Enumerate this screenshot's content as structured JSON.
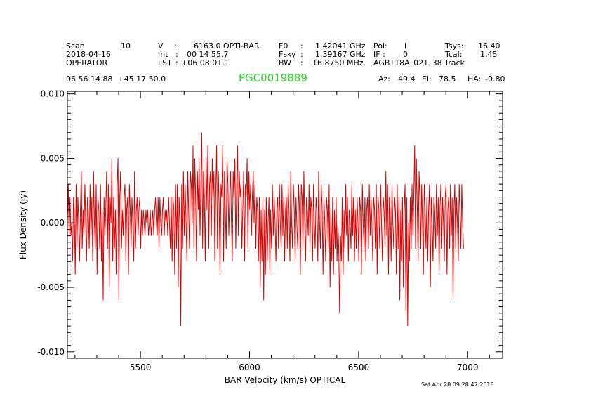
{
  "header": {
    "scan_label": "Scan",
    "scan_value": "10",
    "date": "2018-04-16",
    "observer": "OPERATOR",
    "v_label": "V",
    "v_value": "6163.0 OPTI-BAR",
    "int_label": "Int",
    "int_value": "00 14 55.7",
    "lst_label": "LST",
    "lst_value": "+06 08 01.1",
    "f0_label": "F0",
    "f0_value": "1.42041 GHz",
    "fsky_label": "Fsky",
    "fsky_value": "1.39167 GHz",
    "bw_label": "BW",
    "bw_value": "16.8750 MHz",
    "pol_label": "Pol:",
    "pol_value": "I",
    "if_label": "IF :",
    "if_value": "0",
    "project": "AGBT18A_021_38 Track",
    "tsys_label": "Tsys:",
    "tsys_value": "16.40",
    "tcal_label": "Tcal:",
    "tcal_value": "1.45",
    "coords": "06 56 14.88  +45 17 50.0",
    "az_label": "Az:",
    "az_value": "49.4",
    "el_label": "El:",
    "el_value": "78.5",
    "ha_label": "HA:",
    "ha_value": "-0.80"
  },
  "source_name": "PGC0019889",
  "timestamp": "Sat Apr 28 09:28:47 2018",
  "colors": {
    "line": "#dd0000",
    "title": "#22dd22",
    "axes": "#000000"
  },
  "chart_data": {
    "type": "line",
    "xlabel": "BAR Velocity (km/s) OPTICAL",
    "ylabel": "Flux Density (Jy)",
    "xlim": [
      5165,
      7160
    ],
    "ylim": [
      -0.0105,
      0.0102
    ],
    "xticks": [
      5500,
      6000,
      6500,
      7000
    ],
    "xtick_labels": [
      "5500",
      "6000",
      "6500",
      "7000"
    ],
    "yticks": [
      -0.01,
      -0.005,
      0.0,
      0.005,
      0.01
    ],
    "ytick_labels": [
      "-0.010",
      "-0.005",
      "0.000",
      "0.005",
      "0.010"
    ],
    "grid": false,
    "series": [
      {
        "x_start": 5165,
        "x_step": 4,
        "values": [
          0.0,
          0.003,
          -0.001,
          0.002,
          -0.001,
          0.0,
          -0.003,
          0.002,
          0.001,
          -0.004,
          0.003,
          -0.002,
          0.002,
          0.0,
          -0.003,
          0.001,
          0.004,
          -0.002,
          0.001,
          -0.001,
          0.003,
          0.0,
          -0.003,
          0.002,
          0.001,
          -0.002,
          0.003,
          -0.001,
          0.002,
          -0.003,
          0.004,
          0.0,
          -0.002,
          0.003,
          -0.004,
          0.002,
          0.001,
          -0.002,
          0.003,
          -0.003,
          0.001,
          -0.006,
          0.002,
          -0.001,
          0.001,
          0.004,
          -0.002,
          0.003,
          -0.005,
          0.002,
          0.0,
          0.005,
          -0.003,
          0.002,
          -0.002,
          0.001,
          -0.004,
          0.003,
          0.005,
          -0.006,
          0.002,
          0.004,
          -0.002,
          0.001,
          -0.001,
          0.002,
          0.003,
          -0.003,
          0.001,
          0.002,
          -0.004,
          0.003,
          0.001,
          -0.002,
          0.002,
          0.0,
          -0.003,
          0.004,
          -0.002,
          0.001,
          0.002,
          -0.001,
          0.001,
          0.002,
          -0.002,
          0.001,
          -0.001,
          0.001,
          0.0,
          -0.001,
          0.001,
          0.0,
          0.001,
          -0.001,
          0.0,
          0.001,
          -0.001,
          0.0,
          0.001,
          -0.001,
          0.001,
          0.002,
          0.0,
          -0.001,
          0.002,
          -0.002,
          0.002,
          0.0,
          -0.001,
          0.001,
          0.002,
          -0.001,
          0.001,
          0.0,
          0.001,
          -0.001,
          0.002,
          0.0,
          -0.002,
          0.002,
          -0.003,
          0.002,
          0.001,
          -0.004,
          0.003,
          -0.002,
          0.003,
          -0.005,
          0.002,
          0.0,
          -0.008,
          0.003,
          -0.002,
          0.004,
          -0.001,
          0.003,
          0.0,
          -0.003,
          0.004,
          0.001,
          -0.002,
          0.004,
          0.003,
          0.0,
          0.006,
          -0.002,
          0.005,
          0.002,
          -0.003,
          0.004,
          0.001,
          0.005,
          -0.001,
          0.003,
          0.007,
          -0.002,
          0.004,
          0.002,
          -0.003,
          0.005,
          0.001,
          0.006,
          -0.002,
          0.003,
          0.004,
          -0.001,
          0.005,
          0.002,
          0.004,
          -0.003,
          0.002,
          0.006,
          -0.002,
          0.004,
          0.001,
          -0.004,
          0.003,
          0.002,
          0.006,
          -0.003,
          0.004,
          0.001,
          -0.002,
          0.005,
          0.003,
          -0.001,
          0.002,
          0.004,
          0.0,
          -0.003,
          0.004,
          0.002,
          0.005,
          -0.002,
          0.003,
          0.006,
          -0.001,
          0.004,
          0.002,
          0.003,
          -0.002,
          0.001,
          0.004,
          -0.003,
          0.003,
          0.002,
          0.005,
          -0.002,
          0.004,
          0.001,
          0.003,
          -0.001,
          0.002,
          0.004,
          0.0,
          0.003,
          -0.002,
          0.002,
          0.001,
          -0.003,
          0.002,
          -0.005,
          0.001,
          -0.003,
          0.002,
          -0.006,
          0.001,
          -0.004,
          0.002,
          -0.003,
          0.0,
          0.002,
          -0.004,
          0.001,
          -0.002,
          0.003,
          -0.001,
          0.002,
          0.0,
          -0.003,
          0.001,
          0.002,
          -0.002,
          0.003,
          0.0,
          -0.002,
          0.003,
          -0.001,
          0.002,
          -0.003,
          0.001,
          0.002,
          -0.002,
          0.003,
          0.001,
          -0.003,
          0.004,
          0.0,
          -0.002,
          0.003,
          0.001,
          -0.003,
          0.002,
          0.0,
          -0.002,
          0.003,
          0.001,
          -0.004,
          0.003,
          0.002,
          -0.002,
          0.004,
          0.0,
          -0.003,
          0.002,
          0.001,
          -0.001,
          0.003,
          -0.002,
          0.002,
          0.001,
          -0.003,
          0.003,
          0.0,
          -0.002,
          0.002,
          0.001,
          -0.003,
          0.004,
          0.0,
          -0.002,
          0.003,
          0.001,
          -0.004,
          0.002,
          0.0,
          -0.003,
          0.002,
          0.001,
          -0.002,
          0.003,
          -0.005,
          0.001,
          -0.003,
          0.002,
          -0.004,
          0.001,
          -0.002,
          0.002,
          -0.003,
          0.0,
          -0.002,
          -0.007,
          -0.001,
          -0.003,
          0.002,
          -0.004,
          0.001,
          -0.002,
          0.003,
          -0.001,
          0.002,
          -0.003,
          0.001,
          0.0,
          -0.002,
          0.003,
          -0.001,
          0.002,
          -0.003,
          0.001,
          -0.002,
          0.002,
          0.0,
          -0.003,
          0.002,
          0.001,
          -0.004,
          0.003,
          0.0,
          -0.002,
          0.002,
          -0.003,
          0.001,
          0.002,
          -0.002,
          0.003,
          -0.001,
          0.002,
          0.0,
          -0.003,
          0.002,
          0.001,
          -0.002,
          0.003,
          -0.004,
          0.002,
          0.001,
          -0.002,
          0.003,
          0.0,
          -0.003,
          0.002,
          0.001,
          -0.002,
          0.004,
          -0.001,
          0.003,
          -0.004,
          0.002,
          0.001,
          -0.003,
          0.003,
          0.0,
          -0.002,
          0.002,
          0.001,
          -0.004,
          0.003,
          -0.002,
          0.002,
          -0.006,
          0.001,
          -0.003,
          0.002,
          -0.005,
          0.001,
          0.003,
          -0.007,
          0.002,
          -0.008,
          0.0,
          -0.003,
          0.002,
          -0.002,
          0.003,
          -0.001,
          0.002,
          0.006,
          -0.002,
          0.005,
          0.001,
          -0.003,
          0.004,
          0.002,
          -0.002,
          0.003,
          0.0,
          -0.004,
          0.003,
          0.001,
          -0.002,
          0.002,
          -0.003,
          0.001,
          0.003,
          -0.005,
          0.002,
          0.0,
          -0.003,
          0.002,
          0.001,
          -0.002,
          0.003,
          -0.001,
          0.002,
          -0.004,
          0.001,
          0.003,
          -0.002,
          0.002,
          0.0,
          -0.003,
          0.002,
          0.003,
          -0.004,
          0.001,
          0.002,
          -0.002,
          0.003,
          -0.001,
          0.002,
          -0.006,
          0.001,
          0.003,
          -0.002,
          0.002,
          0.0,
          -0.003,
          0.003,
          0.001,
          -0.002,
          0.003,
          0.0,
          -0.002
        ]
      }
    ]
  }
}
